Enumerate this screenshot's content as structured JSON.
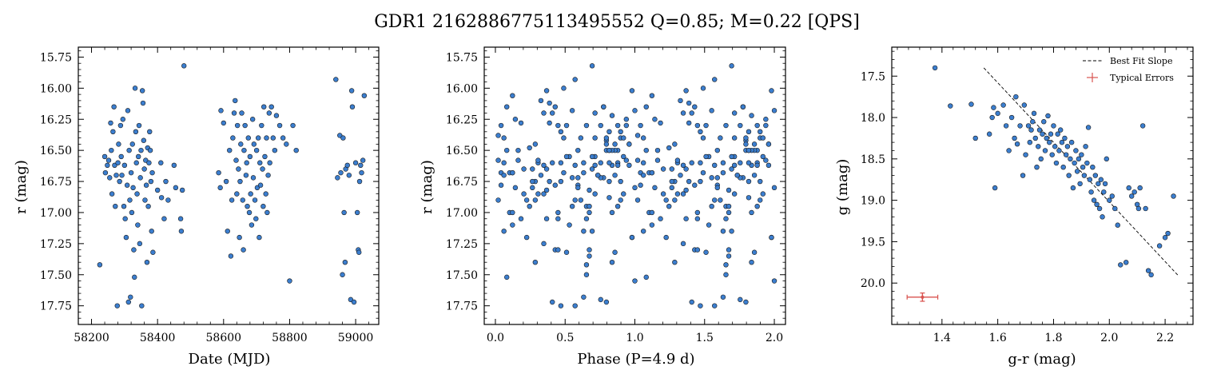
{
  "figure": {
    "title": "GDR1 2162886775113495552  Q=0.85; M=0.22 [QPS]"
  },
  "colors": {
    "point_fill": "#3b7ecf",
    "point_edge": "#1a1a1a",
    "fit_line": "#000000",
    "errorbar": "#d9534f"
  },
  "chart_data": [
    {
      "type": "scatter",
      "xlabel": "Date (MJD)",
      "ylabel": "r (mag)",
      "xlim": [
        58160,
        59070
      ],
      "ylim": [
        17.9,
        15.67
      ],
      "y_inverted": true,
      "xticks": [
        58200,
        58400,
        58600,
        58800,
        59000
      ],
      "xtick_labels": [
        "58200",
        "58400",
        "58600",
        "58800",
        "59000"
      ],
      "yticks": [
        15.75,
        16.0,
        16.25,
        16.5,
        16.75,
        17.0,
        17.25,
        17.5,
        17.75
      ],
      "ytick_labels": [
        "15.75",
        "16.00",
        "16.25",
        "16.50",
        "16.75",
        "17.00",
        "17.25",
        "17.50",
        "17.75"
      ],
      "points": [
        [
          58225,
          17.42
        ],
        [
          58240,
          16.55
        ],
        [
          58242,
          16.68
        ],
        [
          58248,
          16.62
        ],
        [
          58252,
          16.58
        ],
        [
          58255,
          16.72
        ],
        [
          58258,
          16.28
        ],
        [
          58260,
          16.5
        ],
        [
          58262,
          16.85
        ],
        [
          58265,
          16.35
        ],
        [
          58268,
          16.15
        ],
        [
          58270,
          16.62
        ],
        [
          58272,
          16.95
        ],
        [
          58275,
          16.7
        ],
        [
          58278,
          17.75
        ],
        [
          58280,
          16.6
        ],
        [
          58282,
          16.45
        ],
        [
          58285,
          16.75
        ],
        [
          58288,
          16.3
        ],
        [
          58290,
          16.55
        ],
        [
          58292,
          16.7
        ],
        [
          58295,
          16.25
        ],
        [
          58298,
          16.95
        ],
        [
          58300,
          16.62
        ],
        [
          58302,
          17.05
        ],
        [
          58305,
          17.2
        ],
        [
          58308,
          16.78
        ],
        [
          58310,
          16.18
        ],
        [
          58312,
          17.72
        ],
        [
          58314,
          16.5
        ],
        [
          58316,
          16.9
        ],
        [
          58318,
          17.68
        ],
        [
          58320,
          16.68
        ],
        [
          58322,
          17.0
        ],
        [
          58324,
          16.45
        ],
        [
          58326,
          16.8
        ],
        [
          58328,
          17.3
        ],
        [
          58330,
          17.52
        ],
        [
          58332,
          16.0
        ],
        [
          58334,
          16.35
        ],
        [
          58336,
          16.6
        ],
        [
          58338,
          16.85
        ],
        [
          58340,
          17.1
        ],
        [
          58342,
          16.55
        ],
        [
          58344,
          16.3
        ],
        [
          58346,
          17.25
        ],
        [
          58348,
          16.72
        ],
        [
          58350,
          16.5
        ],
        [
          58352,
          17.75
        ],
        [
          58354,
          16.02
        ],
        [
          58356,
          16.12
        ],
        [
          58358,
          16.42
        ],
        [
          58360,
          16.65
        ],
        [
          58362,
          16.9
        ],
        [
          58364,
          16.58
        ],
        [
          58366,
          16.78
        ],
        [
          58368,
          17.4
        ],
        [
          58370,
          16.48
        ],
        [
          58372,
          16.95
        ],
        [
          58374,
          16.6
        ],
        [
          58376,
          16.35
        ],
        [
          58378,
          16.5
        ],
        [
          58380,
          16.75
        ],
        [
          58382,
          17.15
        ],
        [
          58384,
          16.68
        ],
        [
          58386,
          17.32
        ],
        [
          58400,
          16.82
        ],
        [
          58410,
          16.6
        ],
        [
          58412,
          16.88
        ],
        [
          58420,
          17.05
        ],
        [
          58425,
          16.75
        ],
        [
          58432,
          16.9
        ],
        [
          58450,
          16.62
        ],
        [
          58455,
          16.8
        ],
        [
          58470,
          17.05
        ],
        [
          58472,
          17.15
        ],
        [
          58475,
          16.82
        ],
        [
          58480,
          15.82
        ],
        [
          58585,
          16.68
        ],
        [
          58590,
          16.8
        ],
        [
          58592,
          16.18
        ],
        [
          58600,
          16.28
        ],
        [
          58608,
          16.75
        ],
        [
          58612,
          17.15
        ],
        [
          58618,
          16.5
        ],
        [
          58622,
          17.35
        ],
        [
          58625,
          16.9
        ],
        [
          58628,
          16.4
        ],
        [
          58632,
          16.2
        ],
        [
          58635,
          16.1
        ],
        [
          58638,
          16.58
        ],
        [
          58640,
          16.85
        ],
        [
          58642,
          16.3
        ],
        [
          58645,
          16.65
        ],
        [
          58648,
          17.2
        ],
        [
          58650,
          16.75
        ],
        [
          58652,
          16.45
        ],
        [
          58655,
          16.2
        ],
        [
          58658,
          16.9
        ],
        [
          58660,
          17.3
        ],
        [
          58662,
          16.5
        ],
        [
          58665,
          16.3
        ],
        [
          58668,
          16.7
        ],
        [
          58670,
          16.6
        ],
        [
          58672,
          16.95
        ],
        [
          58675,
          16.4
        ],
        [
          58678,
          17.0
        ],
        [
          58680,
          16.55
        ],
        [
          58682,
          16.85
        ],
        [
          58685,
          17.1
        ],
        [
          58688,
          16.25
        ],
        [
          58690,
          16.72
        ],
        [
          58692,
          16.45
        ],
        [
          58695,
          16.9
        ],
        [
          58698,
          17.05
        ],
        [
          58700,
          16.5
        ],
        [
          58702,
          16.8
        ],
        [
          58705,
          16.4
        ],
        [
          58708,
          17.2
        ],
        [
          58710,
          16.6
        ],
        [
          58712,
          16.78
        ],
        [
          58715,
          16.3
        ],
        [
          58718,
          16.65
        ],
        [
          58720,
          16.95
        ],
        [
          58722,
          16.15
        ],
        [
          58725,
          16.55
        ],
        [
          58728,
          16.85
        ],
        [
          58730,
          16.4
        ],
        [
          58732,
          17.0
        ],
        [
          58735,
          16.7
        ],
        [
          58738,
          16.2
        ],
        [
          58740,
          16.6
        ],
        [
          58745,
          16.15
        ],
        [
          58750,
          16.4
        ],
        [
          58755,
          16.5
        ],
        [
          58760,
          16.22
        ],
        [
          58770,
          16.3
        ],
        [
          58780,
          16.4
        ],
        [
          58790,
          16.45
        ],
        [
          58800,
          17.55
        ],
        [
          58810,
          16.3
        ],
        [
          58820,
          16.5
        ],
        [
          58940,
          15.93
        ],
        [
          58945,
          16.72
        ],
        [
          58952,
          16.38
        ],
        [
          58955,
          16.68
        ],
        [
          58960,
          17.5
        ],
        [
          58962,
          16.4
        ],
        [
          58965,
          17.0
        ],
        [
          58968,
          17.4
        ],
        [
          58970,
          16.65
        ],
        [
          58975,
          16.62
        ],
        [
          58980,
          16.7
        ],
        [
          58985,
          17.7
        ],
        [
          58988,
          16.02
        ],
        [
          58990,
          16.15
        ],
        [
          58995,
          17.72
        ],
        [
          59000,
          16.6
        ],
        [
          59005,
          17.0
        ],
        [
          59008,
          17.3
        ],
        [
          59010,
          17.32
        ],
        [
          59012,
          16.75
        ],
        [
          59015,
          16.62
        ],
        [
          59018,
          16.68
        ],
        [
          59022,
          16.58
        ],
        [
          59026,
          16.06
        ]
      ]
    },
    {
      "type": "scatter",
      "xlabel": "Phase (P=4.9 d)",
      "ylabel": "r (mag)",
      "xlim": [
        -0.08,
        2.08
      ],
      "ylim": [
        17.9,
        15.67
      ],
      "y_inverted": true,
      "xticks": [
        0.0,
        0.5,
        1.0,
        1.5,
        2.0
      ],
      "xtick_labels": [
        "0.0",
        "0.5",
        "1.0",
        "1.5",
        "2.0"
      ],
      "yticks": [
        15.75,
        16.0,
        16.25,
        16.5,
        16.75,
        17.0,
        17.25,
        17.5,
        17.75
      ],
      "ytick_labels": [
        "15.75",
        "16.00",
        "16.25",
        "16.50",
        "16.75",
        "17.00",
        "17.25",
        "17.50",
        "17.75"
      ]
    },
    {
      "type": "scatter",
      "xlabel": "g-r (mag)",
      "ylabel": "g (mag)",
      "xlim": [
        1.22,
        2.3
      ],
      "ylim": [
        20.5,
        17.15
      ],
      "y_inverted": true,
      "xticks": [
        1.4,
        1.6,
        1.8,
        2.0,
        2.2
      ],
      "xtick_labels": [
        "1.4",
        "1.6",
        "1.8",
        "2.0",
        "2.2"
      ],
      "yticks": [
        17.5,
        18.0,
        18.5,
        19.0,
        19.5,
        20.0
      ],
      "ytick_labels": [
        "17.5",
        "18.0",
        "18.5",
        "19.0",
        "19.5",
        "20.0"
      ],
      "legend": {
        "position": "upper right",
        "entries": [
          "Best Fit Slope",
          "Typical Errors"
        ]
      },
      "fit_line": {
        "x": [
          1.55,
          2.25
        ],
        "y": [
          17.4,
          19.92
        ]
      },
      "typical_error": {
        "x": 1.33,
        "y": 20.17,
        "xerr": 0.055,
        "yerr": 0.05
      },
      "points": [
        [
          1.375,
          17.4
        ],
        [
          1.43,
          17.86
        ],
        [
          1.505,
          17.84
        ],
        [
          1.52,
          18.25
        ],
        [
          1.57,
          18.2
        ],
        [
          1.58,
          18.0
        ],
        [
          1.585,
          17.88
        ],
        [
          1.59,
          18.85
        ],
        [
          1.6,
          17.95
        ],
        [
          1.62,
          17.85
        ],
        [
          1.63,
          18.1
        ],
        [
          1.64,
          18.4
        ],
        [
          1.65,
          18.0
        ],
        [
          1.66,
          18.25
        ],
        [
          1.665,
          17.75
        ],
        [
          1.67,
          18.32
        ],
        [
          1.68,
          18.1
        ],
        [
          1.69,
          18.7
        ],
        [
          1.695,
          17.85
        ],
        [
          1.7,
          18.45
        ],
        [
          1.71,
          18.1
        ],
        [
          1.715,
          18.3
        ],
        [
          1.72,
          18.15
        ],
        [
          1.725,
          18.05
        ],
        [
          1.73,
          17.95
        ],
        [
          1.735,
          18.25
        ],
        [
          1.74,
          18.6
        ],
        [
          1.745,
          18.35
        ],
        [
          1.75,
          18.15
        ],
        [
          1.755,
          18.5
        ],
        [
          1.76,
          18.2
        ],
        [
          1.765,
          18.05
        ],
        [
          1.77,
          18.4
        ],
        [
          1.775,
          18.25
        ],
        [
          1.78,
          17.98
        ],
        [
          1.785,
          18.3
        ],
        [
          1.79,
          18.2
        ],
        [
          1.795,
          18.45
        ],
        [
          1.8,
          18.1
        ],
        [
          1.805,
          18.35
        ],
        [
          1.81,
          18.55
        ],
        [
          1.815,
          18.2
        ],
        [
          1.82,
          18.4
        ],
        [
          1.825,
          18.15
        ],
        [
          1.83,
          18.3
        ],
        [
          1.835,
          18.6
        ],
        [
          1.84,
          18.25
        ],
        [
          1.845,
          18.45
        ],
        [
          1.85,
          18.35
        ],
        [
          1.855,
          18.7
        ],
        [
          1.86,
          18.5
        ],
        [
          1.865,
          18.3
        ],
        [
          1.87,
          18.85
        ],
        [
          1.875,
          18.55
        ],
        [
          1.88,
          18.4
        ],
        [
          1.885,
          18.65
        ],
        [
          1.89,
          18.5
        ],
        [
          1.895,
          18.8
        ],
        [
          1.9,
          18.45
        ],
        [
          1.905,
          18.6
        ],
        [
          1.91,
          18.7
        ],
        [
          1.915,
          18.35
        ],
        [
          1.92,
          18.55
        ],
        [
          1.925,
          18.12
        ],
        [
          1.93,
          18.75
        ],
        [
          1.935,
          18.9
        ],
        [
          1.94,
          18.6
        ],
        [
          1.945,
          19.0
        ],
        [
          1.95,
          18.7
        ],
        [
          1.955,
          19.05
        ],
        [
          1.96,
          18.8
        ],
        [
          1.965,
          19.1
        ],
        [
          1.97,
          18.75
        ],
        [
          1.975,
          19.2
        ],
        [
          1.98,
          18.9
        ],
        [
          1.985,
          18.8
        ],
        [
          1.99,
          18.5
        ],
        [
          2.0,
          19.0
        ],
        [
          2.01,
          18.95
        ],
        [
          2.02,
          19.1
        ],
        [
          2.03,
          19.3
        ],
        [
          2.04,
          19.78
        ],
        [
          2.06,
          19.75
        ],
        [
          2.07,
          18.85
        ],
        [
          2.08,
          18.95
        ],
        [
          2.09,
          18.9
        ],
        [
          2.1,
          19.05
        ],
        [
          2.105,
          19.1
        ],
        [
          2.11,
          18.85
        ],
        [
          2.12,
          18.1
        ],
        [
          2.13,
          19.1
        ],
        [
          2.14,
          19.85
        ],
        [
          2.15,
          19.9
        ],
        [
          2.18,
          19.55
        ],
        [
          2.2,
          19.45
        ],
        [
          2.21,
          19.4
        ],
        [
          2.23,
          18.95
        ]
      ]
    }
  ]
}
